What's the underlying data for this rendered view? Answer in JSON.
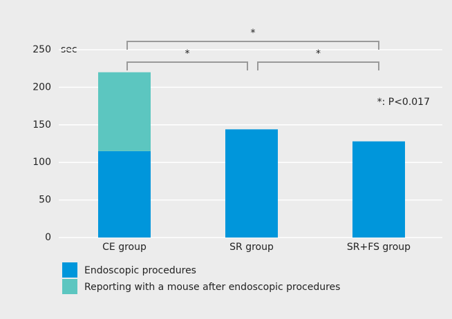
{
  "chart_data": {
    "type": "stacked_bar",
    "y_unit": "sec",
    "categories": [
      "CE group",
      "SR group",
      "SR+FS group"
    ],
    "series": [
      {
        "name": "Endoscopic procedures",
        "color": "#0096db",
        "values": [
          115,
          144,
          128
        ]
      },
      {
        "name": "Reporting with a mouse after endoscopic procedures",
        "color": "#5cc6c0",
        "values": [
          105,
          null,
          null
        ]
      }
    ],
    "ylim": [
      0,
      250
    ],
    "yticks": [
      0,
      50,
      100,
      150,
      200,
      250
    ],
    "grid": true,
    "significance_marks": [
      "*",
      "*",
      "*"
    ],
    "note": "*: P<0.017"
  }
}
